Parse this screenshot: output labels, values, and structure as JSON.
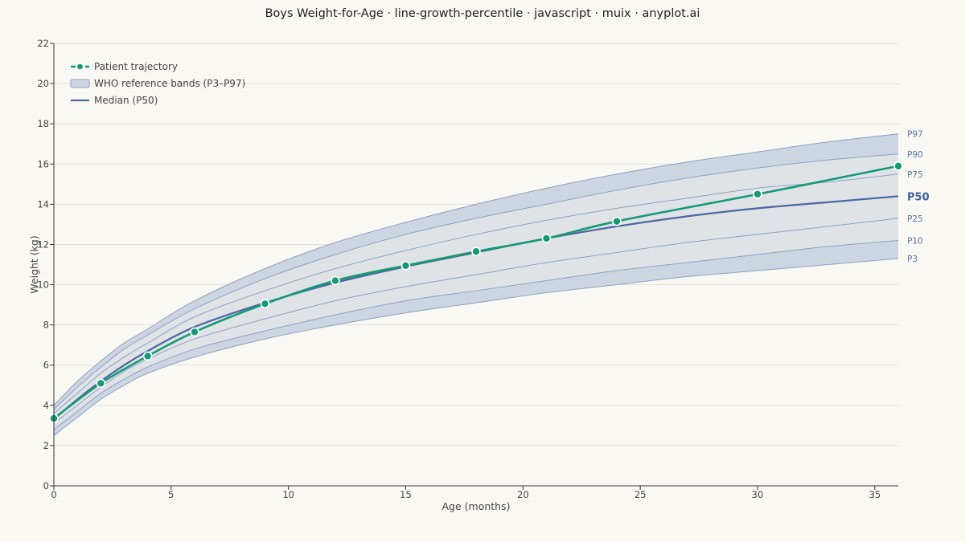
{
  "chart_data": {
    "type": "line",
    "title": "Boys Weight-for-Age · line-growth-percentile · javascript · muix · anyplot.ai",
    "xlabel": "Age (months)",
    "ylabel": "Weight (kg)",
    "xlim": [
      0,
      36
    ],
    "ylim": [
      0,
      22
    ],
    "x_ticks": [
      0,
      5,
      10,
      15,
      20,
      25,
      30,
      35
    ],
    "y_ticks": [
      0,
      2,
      4,
      6,
      8,
      10,
      12,
      14,
      16,
      18,
      20,
      22
    ],
    "grid": "horizontal",
    "legend_position": "top-left",
    "legend": [
      {
        "label": "Patient trajectory",
        "kind": "line-marker"
      },
      {
        "label": "WHO reference bands (P3–P97)",
        "kind": "band"
      },
      {
        "label": "Median (P50)",
        "kind": "line"
      }
    ],
    "colors": {
      "patient": "#159a74",
      "median": "#4a67a1",
      "percentile_line": "#8da0c4",
      "outer_band": "#cdd5e2",
      "inner_band": "#dfe3e6",
      "label": "#5a74a8",
      "grid": "#e2e0d8",
      "axis": "#333333"
    },
    "age_points": [
      0,
      1,
      2,
      3,
      4,
      6,
      9,
      12,
      15,
      18,
      21,
      24,
      27,
      30,
      33,
      36
    ],
    "percentiles": [
      {
        "name": "P3",
        "values": [
          2.5,
          3.4,
          4.3,
          5.0,
          5.6,
          6.4,
          7.3,
          8.0,
          8.6,
          9.1,
          9.6,
          10.0,
          10.4,
          10.7,
          11.0,
          11.3
        ]
      },
      {
        "name": "P10",
        "values": [
          2.8,
          3.7,
          4.6,
          5.3,
          5.9,
          6.8,
          7.7,
          8.5,
          9.2,
          9.7,
          10.2,
          10.7,
          11.1,
          11.5,
          11.9,
          12.2
        ]
      },
      {
        "name": "P25",
        "values": [
          3.1,
          4.0,
          4.9,
          5.7,
          6.3,
          7.3,
          8.3,
          9.2,
          9.9,
          10.5,
          11.1,
          11.6,
          12.1,
          12.5,
          12.9,
          13.3
        ]
      },
      {
        "name": "P50",
        "values": [
          3.3,
          4.3,
          5.2,
          6.0,
          6.7,
          7.9,
          9.1,
          10.1,
          10.9,
          11.6,
          12.3,
          12.9,
          13.4,
          13.8,
          14.1,
          14.4
        ]
      },
      {
        "name": "P75",
        "values": [
          3.6,
          4.6,
          5.6,
          6.4,
          7.1,
          8.4,
          9.7,
          10.8,
          11.7,
          12.5,
          13.2,
          13.8,
          14.3,
          14.8,
          15.1,
          15.5
        ]
      },
      {
        "name": "P90",
        "values": [
          3.8,
          4.9,
          5.9,
          6.8,
          7.5,
          8.8,
          10.3,
          11.5,
          12.5,
          13.3,
          14.0,
          14.7,
          15.3,
          15.8,
          16.2,
          16.5
        ]
      },
      {
        "name": "P97",
        "values": [
          4.0,
          5.2,
          6.2,
          7.1,
          7.8,
          9.2,
          10.8,
          12.1,
          13.1,
          14.0,
          14.8,
          15.5,
          16.1,
          16.6,
          17.1,
          17.5
        ]
      }
    ],
    "patient": {
      "name": "Patient trajectory",
      "x": [
        0,
        2,
        4,
        6,
        9,
        12,
        15,
        18,
        21,
        24,
        30,
        36
      ],
      "y": [
        3.35,
        5.1,
        6.45,
        7.65,
        9.05,
        10.2,
        10.95,
        11.65,
        12.3,
        13.15,
        14.5,
        15.9
      ]
    }
  }
}
